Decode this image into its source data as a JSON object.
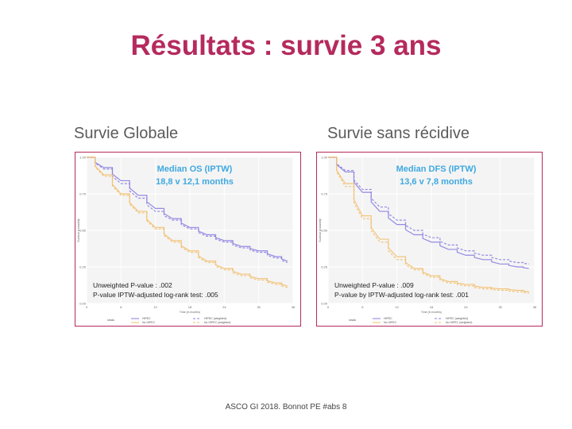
{
  "slide": {
    "title": "Résultats : survie 3 ans",
    "footer": "ASCO GI 2018. Bonnot PE #abs 8"
  },
  "charts": [
    {
      "subtitle": "Survie Globale",
      "median_label": "Median OS (IPTW)",
      "median_value": "18,8 v 12,1 months",
      "pvalue_1": "Unweighted P-value : .002",
      "pvalue_2": "P-value IPTW-adjusted log-rank test: .005"
    },
    {
      "subtitle": "Survie sans récidive",
      "median_label": "Median DFS (IPTW)",
      "median_value": "13,6 v 7,8 months",
      "pvalue_1": "Unweighted P-value : .009",
      "pvalue_2": "P-value by IPTW-adjusted log-rank test: .001"
    }
  ],
  "colors": {
    "title": "#b52a5e",
    "border": "#b52a5e",
    "hipec": "#8a7ee0",
    "no_hipec": "#f2bf6e",
    "annotation_blue": "#3fa9e0"
  },
  "chart_data": [
    {
      "type": "line",
      "title": "Survie Globale",
      "xlabel": "Time (in months)",
      "ylabel": "Survival probability",
      "xlim": [
        0,
        36
      ],
      "ylim": [
        0,
        1
      ],
      "x_ticks": [
        "0",
        "6",
        "12",
        "18",
        "24",
        "30",
        "36"
      ],
      "y_ticks": [
        "0.00",
        "0.25",
        "0.50",
        "0.75",
        "1.00"
      ],
      "legend_title": "strata",
      "legend_items": [
        "HIPEC",
        "No HIPEC",
        "HIPEC (weighted)",
        "No HIPEC (weighted)"
      ],
      "legend_position": "bottom",
      "series": [
        {
          "name": "HIPEC",
          "x": [
            0,
            3,
            6,
            9,
            12,
            15,
            18,
            21,
            24,
            27,
            30,
            33,
            35
          ],
          "values": [
            1.0,
            0.93,
            0.84,
            0.74,
            0.65,
            0.58,
            0.52,
            0.47,
            0.43,
            0.39,
            0.36,
            0.32,
            0.29
          ]
        },
        {
          "name": "HIPEC (weighted)",
          "x": [
            0,
            3,
            6,
            9,
            12,
            15,
            18,
            21,
            24,
            27,
            30,
            33,
            35
          ],
          "values": [
            1.0,
            0.92,
            0.82,
            0.72,
            0.63,
            0.57,
            0.51,
            0.46,
            0.42,
            0.38,
            0.35,
            0.31,
            0.28
          ]
        },
        {
          "name": "No HIPEC",
          "x": [
            0,
            3,
            6,
            9,
            12,
            15,
            18,
            21,
            24,
            27,
            30,
            33,
            35
          ],
          "values": [
            1.0,
            0.88,
            0.75,
            0.63,
            0.52,
            0.43,
            0.36,
            0.29,
            0.24,
            0.2,
            0.17,
            0.14,
            0.12
          ]
        },
        {
          "name": "No HIPEC (weighted)",
          "x": [
            0,
            3,
            6,
            9,
            12,
            15,
            18,
            21,
            24,
            27,
            30,
            33,
            35
          ],
          "values": [
            1.0,
            0.87,
            0.74,
            0.62,
            0.51,
            0.42,
            0.35,
            0.28,
            0.23,
            0.19,
            0.16,
            0.13,
            0.11
          ]
        }
      ]
    },
    {
      "type": "line",
      "title": "Survie sans récidive",
      "xlabel": "Time (in months)",
      "ylabel": "Survival probability",
      "xlim": [
        0,
        36
      ],
      "ylim": [
        0,
        1
      ],
      "x_ticks": [
        "0",
        "6",
        "12",
        "18",
        "24",
        "30",
        "36"
      ],
      "y_ticks": [
        "0.00",
        "0.25",
        "0.50",
        "0.75",
        "1.00"
      ],
      "legend_title": "strata",
      "legend_items": [
        "HIPEC",
        "No HIPEC",
        "HIPEC (weighted)",
        "No HIPEC (weighted)"
      ],
      "legend_position": "bottom",
      "series": [
        {
          "name": "HIPEC",
          "x": [
            0,
            3,
            6,
            9,
            12,
            15,
            18,
            21,
            24,
            27,
            30,
            33,
            35
          ],
          "values": [
            1.0,
            0.9,
            0.76,
            0.63,
            0.54,
            0.47,
            0.42,
            0.37,
            0.33,
            0.3,
            0.27,
            0.25,
            0.24
          ]
        },
        {
          "name": "HIPEC (weighted)",
          "x": [
            0,
            3,
            6,
            9,
            12,
            15,
            18,
            21,
            24,
            27,
            30,
            33,
            35
          ],
          "values": [
            1.0,
            0.91,
            0.78,
            0.66,
            0.57,
            0.5,
            0.45,
            0.4,
            0.36,
            0.33,
            0.3,
            0.28,
            0.27
          ]
        },
        {
          "name": "No HIPEC",
          "x": [
            0,
            3,
            6,
            9,
            12,
            15,
            18,
            21,
            24,
            27,
            30,
            33,
            35
          ],
          "values": [
            1.0,
            0.82,
            0.6,
            0.44,
            0.32,
            0.24,
            0.19,
            0.15,
            0.13,
            0.11,
            0.1,
            0.09,
            0.08
          ]
        },
        {
          "name": "No HIPEC (weighted)",
          "x": [
            0,
            3,
            6,
            9,
            12,
            15,
            18,
            21,
            24,
            27,
            30,
            33,
            35
          ],
          "values": [
            1.0,
            0.8,
            0.58,
            0.42,
            0.3,
            0.23,
            0.18,
            0.14,
            0.12,
            0.1,
            0.09,
            0.08,
            0.07
          ]
        }
      ]
    }
  ]
}
